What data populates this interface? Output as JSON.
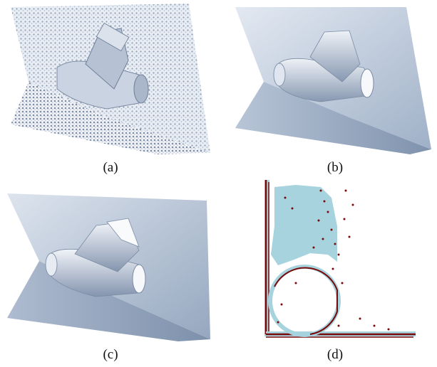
{
  "figure": {
    "panels": [
      {
        "caption": "(a)",
        "content": "raw-point-cloud"
      },
      {
        "caption": "(b)",
        "content": "smooth-surface-reconstruction"
      },
      {
        "caption": "(c)",
        "content": "detailed-surface-reconstruction"
      },
      {
        "caption": "(d)",
        "content": "cross-section-slice"
      }
    ]
  },
  "colors": {
    "surface_light": "#dfe6f0",
    "surface_mid": "#a9b8cc",
    "surface_dark": "#6f819b",
    "slice_fill": "#a6d3de",
    "points": "#7a0a0a"
  }
}
